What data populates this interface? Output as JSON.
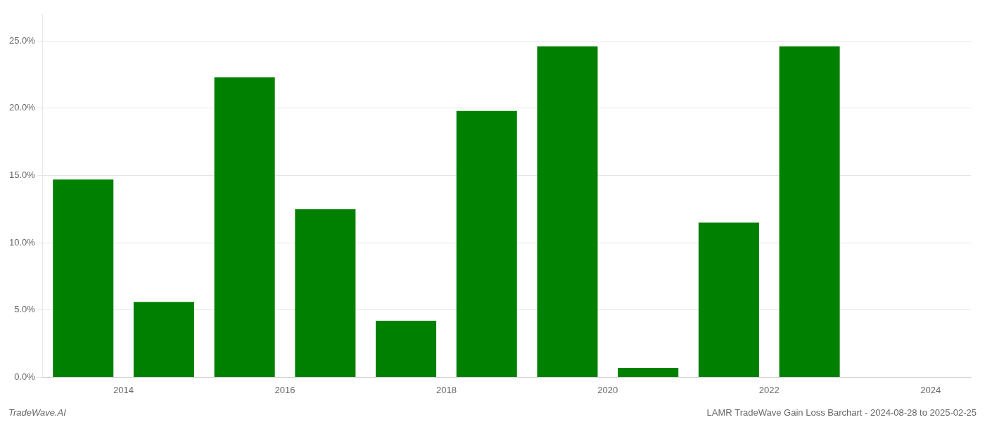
{
  "chart_data": {
    "type": "bar",
    "x": [
      2014,
      2015,
      2016,
      2017,
      2018,
      2019,
      2020,
      2021,
      2022,
      2023
    ],
    "values": [
      0.147,
      0.056,
      0.223,
      0.125,
      0.042,
      0.198,
      0.246,
      0.007,
      0.115,
      0.246
    ],
    "color": "#008000",
    "xlim": [
      2013.5,
      2025.0
    ],
    "xticks": [
      {
        "value": 2014.5,
        "label": "2014"
      },
      {
        "value": 2016.5,
        "label": "2016"
      },
      {
        "value": 2018.5,
        "label": "2018"
      },
      {
        "value": 2020.5,
        "label": "2020"
      },
      {
        "value": 2022.5,
        "label": "2022"
      },
      {
        "value": 2024.5,
        "label": "2024"
      }
    ],
    "ylim": [
      0,
      0.27
    ],
    "yticks": [
      {
        "value": 0.0,
        "label": "0.0%"
      },
      {
        "value": 0.05,
        "label": "5.0%"
      },
      {
        "value": 0.1,
        "label": "10.0%"
      },
      {
        "value": 0.15,
        "label": "15.0%"
      },
      {
        "value": 0.2,
        "label": "20.0%"
      },
      {
        "value": 0.25,
        "label": "25.0%"
      }
    ],
    "grid": true,
    "annotations": [
      "TradeWave.AI",
      "LAMR TradeWave Gain Loss Barchart - 2024-08-28 to 2025-02-25"
    ]
  }
}
